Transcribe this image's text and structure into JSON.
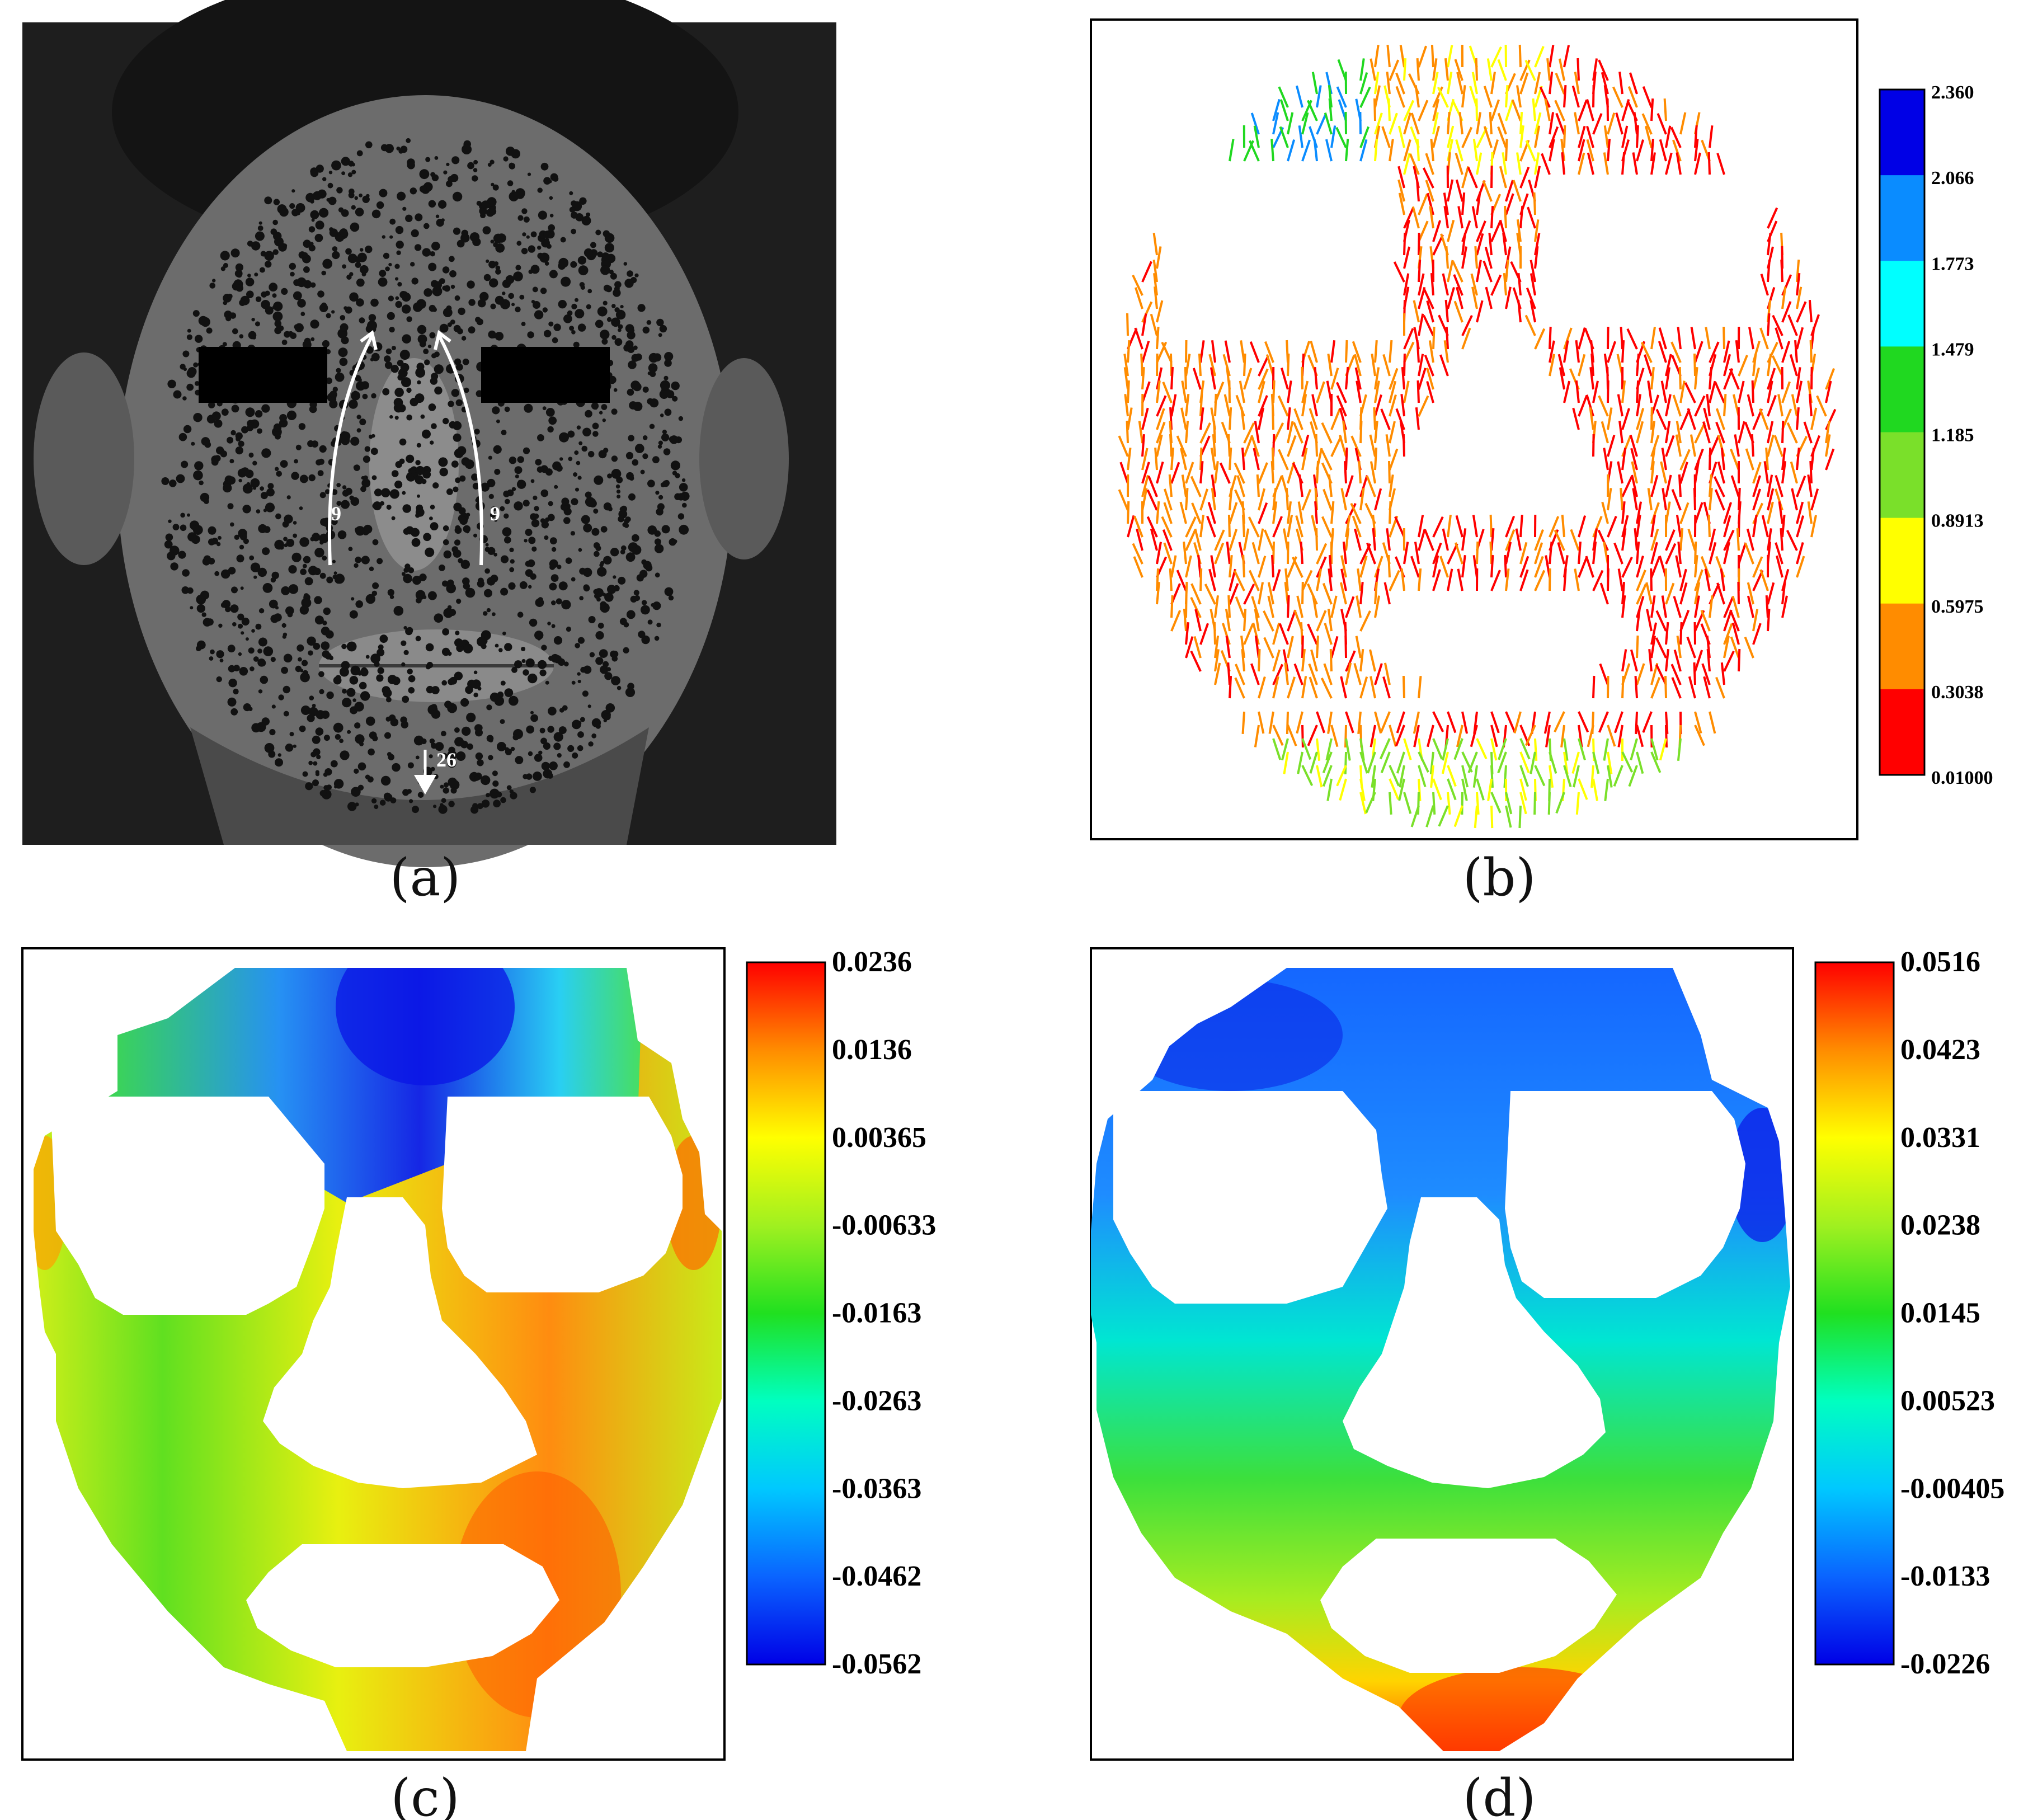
{
  "captions": {
    "a": "(a)",
    "b": "(b)",
    "c": "(c)",
    "d": "(d)"
  },
  "photo_annotations": {
    "left_arrow_label": "9",
    "right_arrow_label": "9",
    "chin_arrow_label": "26"
  },
  "colors": {
    "red": "#ff0000",
    "orange": "#ff8c00",
    "yellow": "#ffff00",
    "yellowgreen": "#9ade28",
    "green": "#20d820",
    "cyan": "#00ffff",
    "lightblue": "#0a8cff",
    "blue": "#0000e6"
  },
  "chart_data": [
    {
      "panel": "b",
      "type": "heatmap",
      "description_kind": "vector field colorbar",
      "colorbar_ticks": [
        "2.360",
        "2.066",
        "1.773",
        "1.479",
        "1.185",
        "0.8913",
        "0.5975",
        "0.3038",
        "0.01000"
      ],
      "colorbar_range": [
        0.01,
        2.36
      ],
      "colorbar_steps": [
        "#0000e6",
        "#0a8cff",
        "#00ffff",
        "#20d820",
        "#7ae02a",
        "#ffff00",
        "#ff8c00",
        "#ff0000"
      ]
    },
    {
      "panel": "c",
      "type": "heatmap",
      "colorbar_ticks": [
        "0.0236",
        "0.0136",
        "0.00365",
        "-0.00633",
        "-0.0163",
        "-0.0263",
        "-0.0363",
        "-0.0462",
        "-0.0562"
      ],
      "colorbar_range": [
        -0.0562,
        0.0236
      ]
    },
    {
      "panel": "d",
      "type": "heatmap",
      "colorbar_ticks": [
        "0.0516",
        "0.0423",
        "0.0331",
        "0.0238",
        "0.0145",
        "0.00523",
        "-0.00405",
        "-0.0133",
        "-0.0226"
      ],
      "colorbar_range": [
        -0.0226,
        0.0516
      ]
    }
  ]
}
